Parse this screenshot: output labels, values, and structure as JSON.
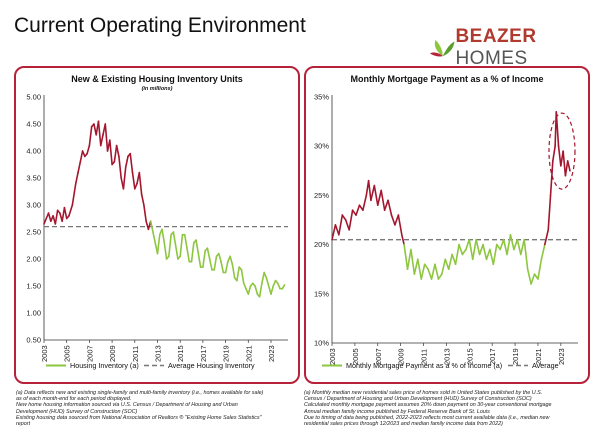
{
  "page": {
    "title": "Current Operating Environment",
    "logo_brand": "BEAZER",
    "logo_suffix": "HOMES",
    "colors": {
      "accent": "#b5223a",
      "green": "#8dc63f",
      "dark_red": "#a3162e",
      "avg_line": "#777777"
    }
  },
  "left_notes": [
    "(a) Data reflects new and existing single-family and multi-family inventory (i.e., homes available for sale)",
    "as of each month-end for each period displayed.",
    "New home housing information sourced via U.S. Census / Department of Housing and Urban",
    "Development (HUD) Survey of Construction (SOC)",
    "Existing housing data sourced from National Association of Realtors ® \"Existing Home Sales Statistics\"",
    "report"
  ],
  "right_notes": [
    "(a) Monthly median new residential sales price of homes sold in United States published by the U.S.",
    "Census / Department of Housing and Urban Development (HUD) Survey of Construction (SOC)",
    "Calculated monthly mortgage payment assumes 20% down payment on 30-year conventional mortgage",
    "Annual median family income published by Federal Reserve Bank of St. Louis",
    "Due to timing of data being published, 2022-2023 reflects most current available data (i.e., median new",
    "residential sales prices through 12/2023 and median family income data from 2022)"
  ],
  "chart_data": [
    {
      "type": "line",
      "title": "New & Existing Housing Inventory Units",
      "subtitle": "(in millions)",
      "xlabel": "",
      "ylabel": "",
      "xlim": [
        2003,
        2024.5
      ],
      "ylim": [
        0.5,
        5.0
      ],
      "x_ticks": [
        "2003",
        "2005",
        "2007",
        "2009",
        "2011",
        "2013",
        "2015",
        "2017",
        "2019",
        "2021",
        "2023"
      ],
      "y_ticks": [
        "0.50",
        "1.00",
        "1.50",
        "2.00",
        "2.50",
        "3.00",
        "3.50",
        "4.00",
        "4.50",
        "5.00"
      ],
      "grid": false,
      "legend_position": "bottom",
      "color_switch_x": 2012.5,
      "series": [
        {
          "name": "Housing Inventory (a)",
          "x": [
            2003.0,
            2003.2,
            2003.4,
            2003.6,
            2003.8,
            2004.0,
            2004.2,
            2004.4,
            2004.6,
            2004.8,
            2005.0,
            2005.2,
            2005.5,
            2005.8,
            2006.0,
            2006.2,
            2006.4,
            2006.6,
            2006.8,
            2007.0,
            2007.2,
            2007.4,
            2007.6,
            2007.8,
            2008.0,
            2008.2,
            2008.4,
            2008.6,
            2008.8,
            2009.0,
            2009.2,
            2009.4,
            2009.6,
            2009.8,
            2010.0,
            2010.2,
            2010.4,
            2010.6,
            2010.8,
            2011.0,
            2011.2,
            2011.4,
            2011.6,
            2011.8,
            2012.0,
            2012.2,
            2012.4,
            2012.6,
            2012.8,
            2013.0,
            2013.2,
            2013.4,
            2013.6,
            2013.8,
            2014.0,
            2014.2,
            2014.4,
            2014.6,
            2014.8,
            2015.0,
            2015.2,
            2015.4,
            2015.6,
            2015.8,
            2016.0,
            2016.2,
            2016.4,
            2016.6,
            2016.8,
            2017.0,
            2017.2,
            2017.4,
            2017.6,
            2017.8,
            2018.0,
            2018.2,
            2018.4,
            2018.6,
            2018.8,
            2019.0,
            2019.2,
            2019.4,
            2019.6,
            2019.8,
            2020.0,
            2020.2,
            2020.4,
            2020.6,
            2020.8,
            2021.0,
            2021.2,
            2021.4,
            2021.6,
            2021.8,
            2022.0,
            2022.2,
            2022.4,
            2022.6,
            2022.8,
            2023.0,
            2023.2,
            2023.4,
            2023.6,
            2023.8,
            2024.0,
            2024.2
          ],
          "values": [
            2.65,
            2.75,
            2.85,
            2.7,
            2.8,
            2.65,
            2.9,
            2.85,
            2.7,
            2.95,
            2.75,
            2.8,
            3.0,
            3.4,
            3.6,
            3.8,
            4.0,
            3.9,
            3.95,
            4.1,
            4.45,
            4.5,
            4.3,
            4.55,
            4.1,
            4.3,
            4.5,
            4.0,
            4.2,
            3.75,
            3.8,
            4.1,
            3.9,
            3.5,
            3.3,
            3.7,
            3.9,
            3.95,
            3.6,
            3.3,
            3.4,
            3.6,
            3.2,
            3.0,
            2.7,
            2.55,
            2.7,
            2.5,
            2.3,
            2.1,
            2.45,
            2.55,
            2.3,
            2.0,
            2.05,
            2.45,
            2.5,
            2.25,
            2.0,
            2.05,
            2.45,
            2.45,
            2.2,
            1.95,
            1.95,
            2.3,
            2.35,
            2.1,
            1.85,
            1.85,
            2.15,
            2.2,
            2.0,
            1.8,
            1.8,
            2.05,
            2.1,
            1.95,
            1.75,
            1.75,
            1.95,
            2.05,
            1.9,
            1.65,
            1.6,
            1.85,
            1.8,
            1.55,
            1.45,
            1.35,
            1.5,
            1.55,
            1.5,
            1.35,
            1.3,
            1.55,
            1.75,
            1.65,
            1.5,
            1.35,
            1.5,
            1.6,
            1.55,
            1.45,
            1.45,
            1.52
          ]
        },
        {
          "name": "Average Housing Inventory",
          "values": [
            2.6
          ]
        }
      ]
    },
    {
      "type": "line",
      "title": "Monthly Mortgage Payment as a % of Income",
      "xlabel": "",
      "ylabel": "",
      "xlim": [
        2003,
        2024.5
      ],
      "ylim": [
        10,
        35
      ],
      "x_ticks": [
        "2003",
        "2005",
        "2007",
        "2009",
        "2011",
        "2013",
        "2015",
        "2017",
        "2019",
        "2021",
        "2023"
      ],
      "y_ticks": [
        "10%",
        "15%",
        "20%",
        "25%",
        "30%",
        "35%"
      ],
      "grid": false,
      "legend_position": "bottom",
      "series": [
        {
          "name": "Monthly Mortgage Payment as a % of Income (a)",
          "x": [
            2003.0,
            2003.3,
            2003.6,
            2003.9,
            2004.2,
            2004.5,
            2004.8,
            2005.1,
            2005.4,
            2005.7,
            2006.0,
            2006.2,
            2006.4,
            2006.7,
            2007.0,
            2007.3,
            2007.6,
            2007.9,
            2008.2,
            2008.5,
            2008.8,
            2009.1,
            2009.3,
            2009.6,
            2009.9,
            2010.2,
            2010.5,
            2010.8,
            2011.1,
            2011.4,
            2011.7,
            2012.0,
            2012.3,
            2012.6,
            2012.9,
            2013.2,
            2013.5,
            2013.8,
            2014.1,
            2014.4,
            2014.7,
            2015.0,
            2015.3,
            2015.6,
            2015.9,
            2016.2,
            2016.5,
            2016.8,
            2017.1,
            2017.4,
            2017.7,
            2018.0,
            2018.3,
            2018.6,
            2018.9,
            2019.2,
            2019.5,
            2019.8,
            2020.1,
            2020.4,
            2020.7,
            2021.0,
            2021.3,
            2021.6,
            2021.9,
            2022.1,
            2022.3,
            2022.5,
            2022.6,
            2022.8,
            2023.0,
            2023.2,
            2023.4,
            2023.6,
            2023.8
          ],
          "values": [
            20.5,
            22.0,
            21.0,
            23.0,
            22.5,
            21.5,
            23.5,
            23.0,
            24.0,
            23.5,
            25.0,
            26.5,
            24.5,
            26.0,
            24.0,
            25.5,
            23.5,
            24.5,
            23.0,
            22.0,
            23.0,
            21.0,
            20.0,
            17.5,
            19.5,
            17.0,
            18.5,
            16.5,
            18.0,
            17.5,
            16.5,
            18.0,
            16.5,
            17.0,
            18.5,
            17.5,
            19.0,
            18.0,
            20.0,
            19.0,
            19.5,
            20.5,
            18.5,
            20.5,
            19.0,
            20.0,
            18.5,
            19.5,
            18.0,
            20.0,
            19.5,
            20.5,
            19.0,
            21.0,
            19.5,
            20.5,
            19.0,
            20.5,
            17.5,
            16.0,
            17.0,
            16.5,
            18.5,
            20.0,
            21.5,
            25.0,
            28.5,
            30.0,
            33.5,
            30.0,
            28.0,
            29.5,
            27.0,
            28.5,
            27.5
          ]
        },
        {
          "name": "Average",
          "values": [
            20.5
          ]
        }
      ],
      "annotations": [
        "dashed ellipse highlighting 2022-2023 peak"
      ]
    }
  ]
}
